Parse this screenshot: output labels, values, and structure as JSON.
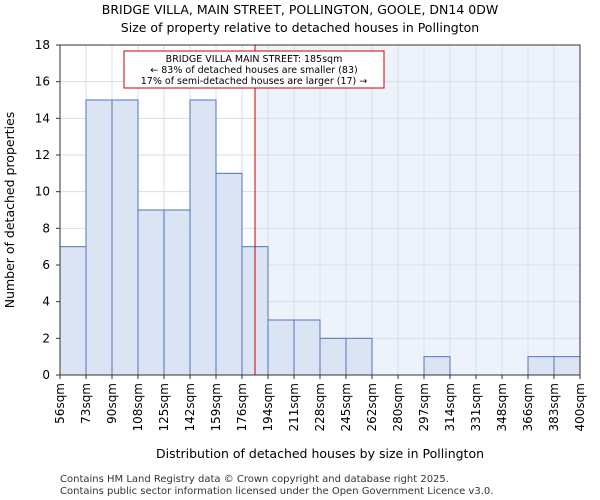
{
  "chart_data": {
    "type": "bar",
    "title": "BRIDGE VILLA, MAIN STREET, POLLINGTON, GOOLE, DN14 0DW",
    "subtitle": "Size of property relative to detached houses in Pollington",
    "xlabel": "Distribution of detached houses by size in Pollington",
    "ylabel": "Number of detached properties",
    "bin_edges": [
      56,
      73,
      90,
      108,
      125,
      142,
      159,
      176,
      194,
      211,
      228,
      245,
      262,
      280,
      297,
      314,
      331,
      348,
      366,
      383,
      400
    ],
    "tick_labels": [
      "56sqm",
      "73sqm",
      "90sqm",
      "108sqm",
      "125sqm",
      "142sqm",
      "159sqm",
      "176sqm",
      "194sqm",
      "211sqm",
      "228sqm",
      "245sqm",
      "262sqm",
      "280sqm",
      "297sqm",
      "314sqm",
      "331sqm",
      "348sqm",
      "366sqm",
      "383sqm",
      "400sqm"
    ],
    "values": [
      7,
      15,
      15,
      9,
      9,
      15,
      11,
      7,
      3,
      3,
      2,
      2,
      0,
      0,
      1,
      0,
      0,
      0,
      1,
      1
    ],
    "ylim": [
      0,
      18
    ],
    "yticks": [
      0,
      2,
      4,
      6,
      8,
      10,
      12,
      14,
      16,
      18
    ],
    "grid": true,
    "marker_value": 185,
    "colors": {
      "bar_fill": "#dbe4f3",
      "bar_stroke": "#4f75b8",
      "shade_fill": "#eef2fa",
      "marker_line": "#cc0000",
      "grid": "#d8dde8"
    },
    "annotation": {
      "line1": "BRIDGE VILLA MAIN STREET: 185sqm",
      "line2": "← 83% of detached houses are smaller (83)",
      "line3": "17% of semi-detached houses are larger (17) →"
    }
  },
  "footer": {
    "line1": "Contains HM Land Registry data © Crown copyright and database right 2025.",
    "line2": "Contains public sector information licensed under the Open Government Licence v3.0."
  }
}
